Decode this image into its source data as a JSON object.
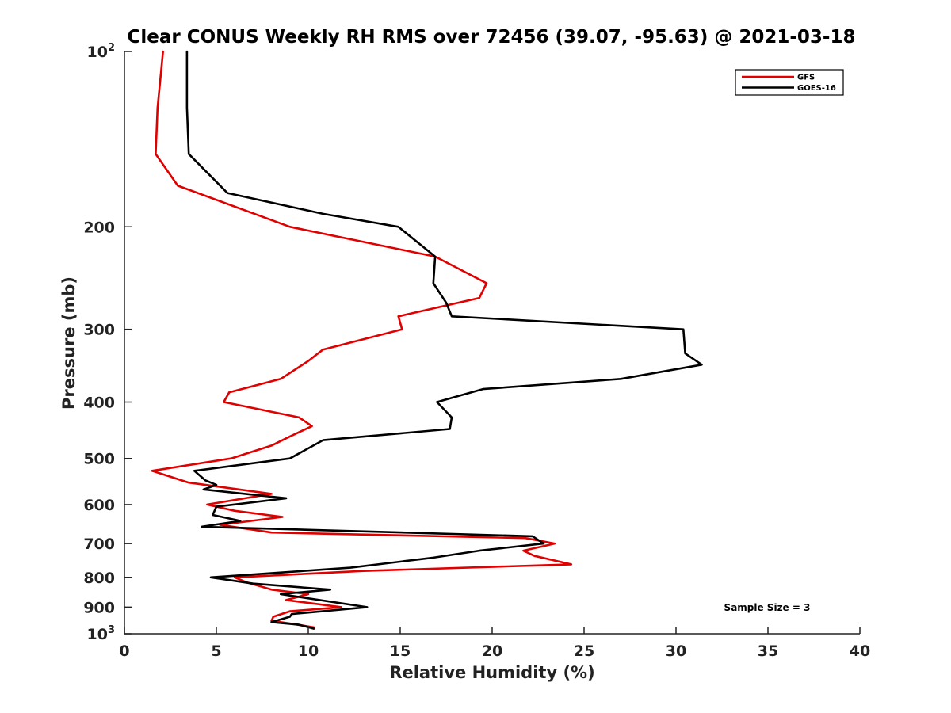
{
  "chart_data": {
    "type": "line",
    "title": "Clear CONUS Weekly RH RMS over 72456 (39.07, -95.63) @ 2021-03-18",
    "xlabel": "Relative Humidity (%)",
    "ylabel": "Pressure (mb)",
    "xlim": [
      0,
      40
    ],
    "ylim": [
      100,
      1000
    ],
    "yscale": "log",
    "y_reversed": true,
    "grid": false,
    "x_ticks": [
      "0",
      "5",
      "10",
      "15",
      "20",
      "25",
      "30",
      "35",
      "40"
    ],
    "y_ticks": [
      {
        "value": 100,
        "base": "10",
        "exp": "2"
      },
      {
        "value": 200,
        "label": "200"
      },
      {
        "value": 300,
        "label": "300"
      },
      {
        "value": 400,
        "label": "400"
      },
      {
        "value": 500,
        "label": "500"
      },
      {
        "value": 600,
        "label": "600"
      },
      {
        "value": 700,
        "label": "700"
      },
      {
        "value": 800,
        "label": "800"
      },
      {
        "value": 900,
        "label": "900"
      },
      {
        "value": 1000,
        "base": "10",
        "exp": "3"
      }
    ],
    "legend_position": "top-right",
    "series": [
      {
        "name": "GFS",
        "color": "#e00000",
        "points": [
          [
            2.1,
            100
          ],
          [
            1.8,
            125
          ],
          [
            1.7,
            150
          ],
          [
            2.9,
            170
          ],
          [
            9.0,
            200
          ],
          [
            16.9,
            225
          ],
          [
            19.7,
            250
          ],
          [
            19.3,
            265
          ],
          [
            14.9,
            285
          ],
          [
            15.1,
            300
          ],
          [
            10.8,
            325
          ],
          [
            10.0,
            340
          ],
          [
            8.5,
            365
          ],
          [
            5.7,
            385
          ],
          [
            5.4,
            400
          ],
          [
            9.5,
            425
          ],
          [
            10.2,
            440
          ],
          [
            8.9,
            460
          ],
          [
            8.0,
            475
          ],
          [
            5.8,
            500
          ],
          [
            1.5,
            525
          ],
          [
            3.5,
            550
          ],
          [
            8.0,
            575
          ],
          [
            4.5,
            600
          ],
          [
            6.0,
            615
          ],
          [
            8.6,
            630
          ],
          [
            5.2,
            650
          ],
          [
            8.0,
            670
          ],
          [
            21.8,
            685
          ],
          [
            23.4,
            700
          ],
          [
            21.7,
            720
          ],
          [
            22.3,
            735
          ],
          [
            24.3,
            760
          ],
          [
            13.0,
            780
          ],
          [
            6.0,
            800
          ],
          [
            6.6,
            815
          ],
          [
            8.0,
            840
          ],
          [
            10.0,
            855
          ],
          [
            8.8,
            875
          ],
          [
            11.8,
            900
          ],
          [
            9.0,
            915
          ],
          [
            8.1,
            935
          ],
          [
            8.0,
            950
          ],
          [
            9.0,
            960
          ],
          [
            10.3,
            975
          ]
        ]
      },
      {
        "name": "GOES-16",
        "color": "#000000",
        "points": [
          [
            3.4,
            100
          ],
          [
            3.4,
            125
          ],
          [
            3.5,
            150
          ],
          [
            5.6,
            175
          ],
          [
            10.8,
            190
          ],
          [
            14.9,
            200
          ],
          [
            16.9,
            225
          ],
          [
            16.8,
            250
          ],
          [
            17.5,
            270
          ],
          [
            17.8,
            285
          ],
          [
            30.4,
            300
          ],
          [
            30.5,
            330
          ],
          [
            31.4,
            345
          ],
          [
            27.0,
            365
          ],
          [
            19.5,
            380
          ],
          [
            17.0,
            400
          ],
          [
            17.8,
            425
          ],
          [
            17.7,
            445
          ],
          [
            10.8,
            465
          ],
          [
            9.0,
            500
          ],
          [
            3.8,
            525
          ],
          [
            4.4,
            545
          ],
          [
            5.0,
            555
          ],
          [
            4.3,
            565
          ],
          [
            8.8,
            585
          ],
          [
            5.0,
            605
          ],
          [
            4.8,
            625
          ],
          [
            6.3,
            640
          ],
          [
            4.2,
            655
          ],
          [
            22.2,
            680
          ],
          [
            22.8,
            700
          ],
          [
            19.3,
            720
          ],
          [
            16.8,
            740
          ],
          [
            12.3,
            770
          ],
          [
            4.7,
            800
          ],
          [
            7.0,
            820
          ],
          [
            11.2,
            840
          ],
          [
            8.5,
            855
          ],
          [
            13.2,
            900
          ],
          [
            9.1,
            925
          ],
          [
            9.0,
            935
          ],
          [
            8.0,
            955
          ],
          [
            9.5,
            965
          ],
          [
            10.3,
            980
          ]
        ]
      }
    ],
    "annotations": [
      "Sample Size = 3"
    ]
  }
}
